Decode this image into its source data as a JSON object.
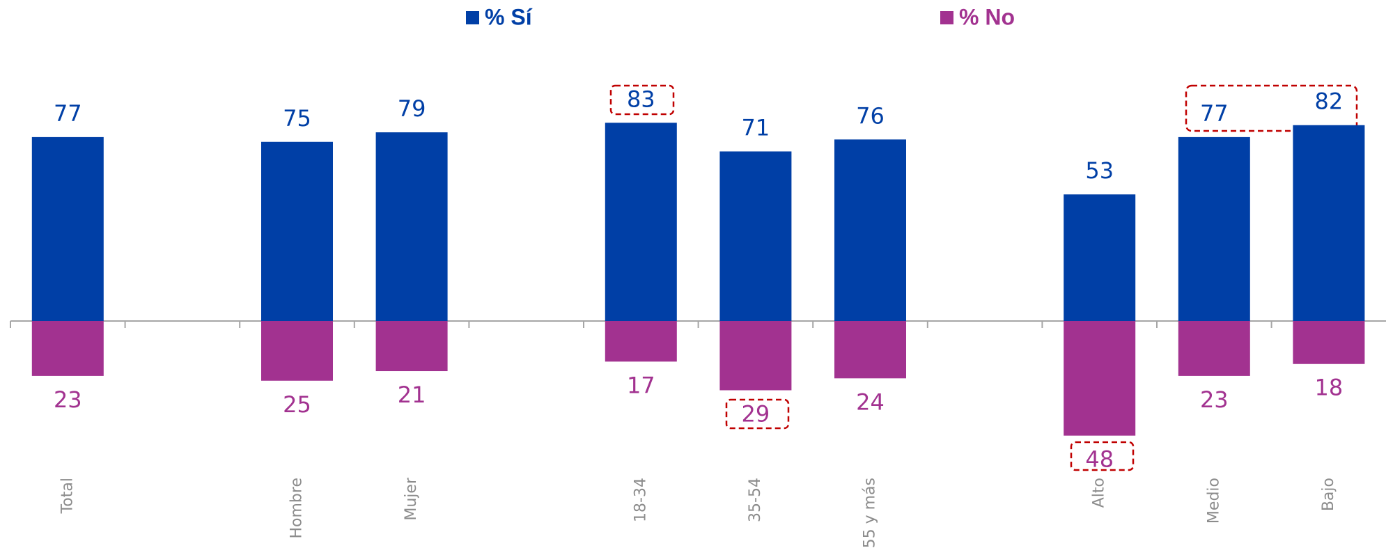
{
  "chart_data": {
    "type": "diverging_bar",
    "categories": [
      "Total",
      null,
      "Hombre",
      "Mujer",
      null,
      "18-34",
      "35-54",
      "55 y más",
      null,
      "Alto",
      "Medio",
      "Bajo"
    ],
    "series": [
      {
        "name": "% Sí",
        "color": "#003fa6",
        "values": [
          77,
          null,
          75,
          79,
          null,
          83,
          71,
          76,
          null,
          53,
          77,
          82
        ]
      },
      {
        "name": "% No",
        "color": "#a23290",
        "values": [
          23,
          null,
          25,
          21,
          null,
          17,
          29,
          24,
          null,
          48,
          23,
          18
        ]
      }
    ]
  }
}
